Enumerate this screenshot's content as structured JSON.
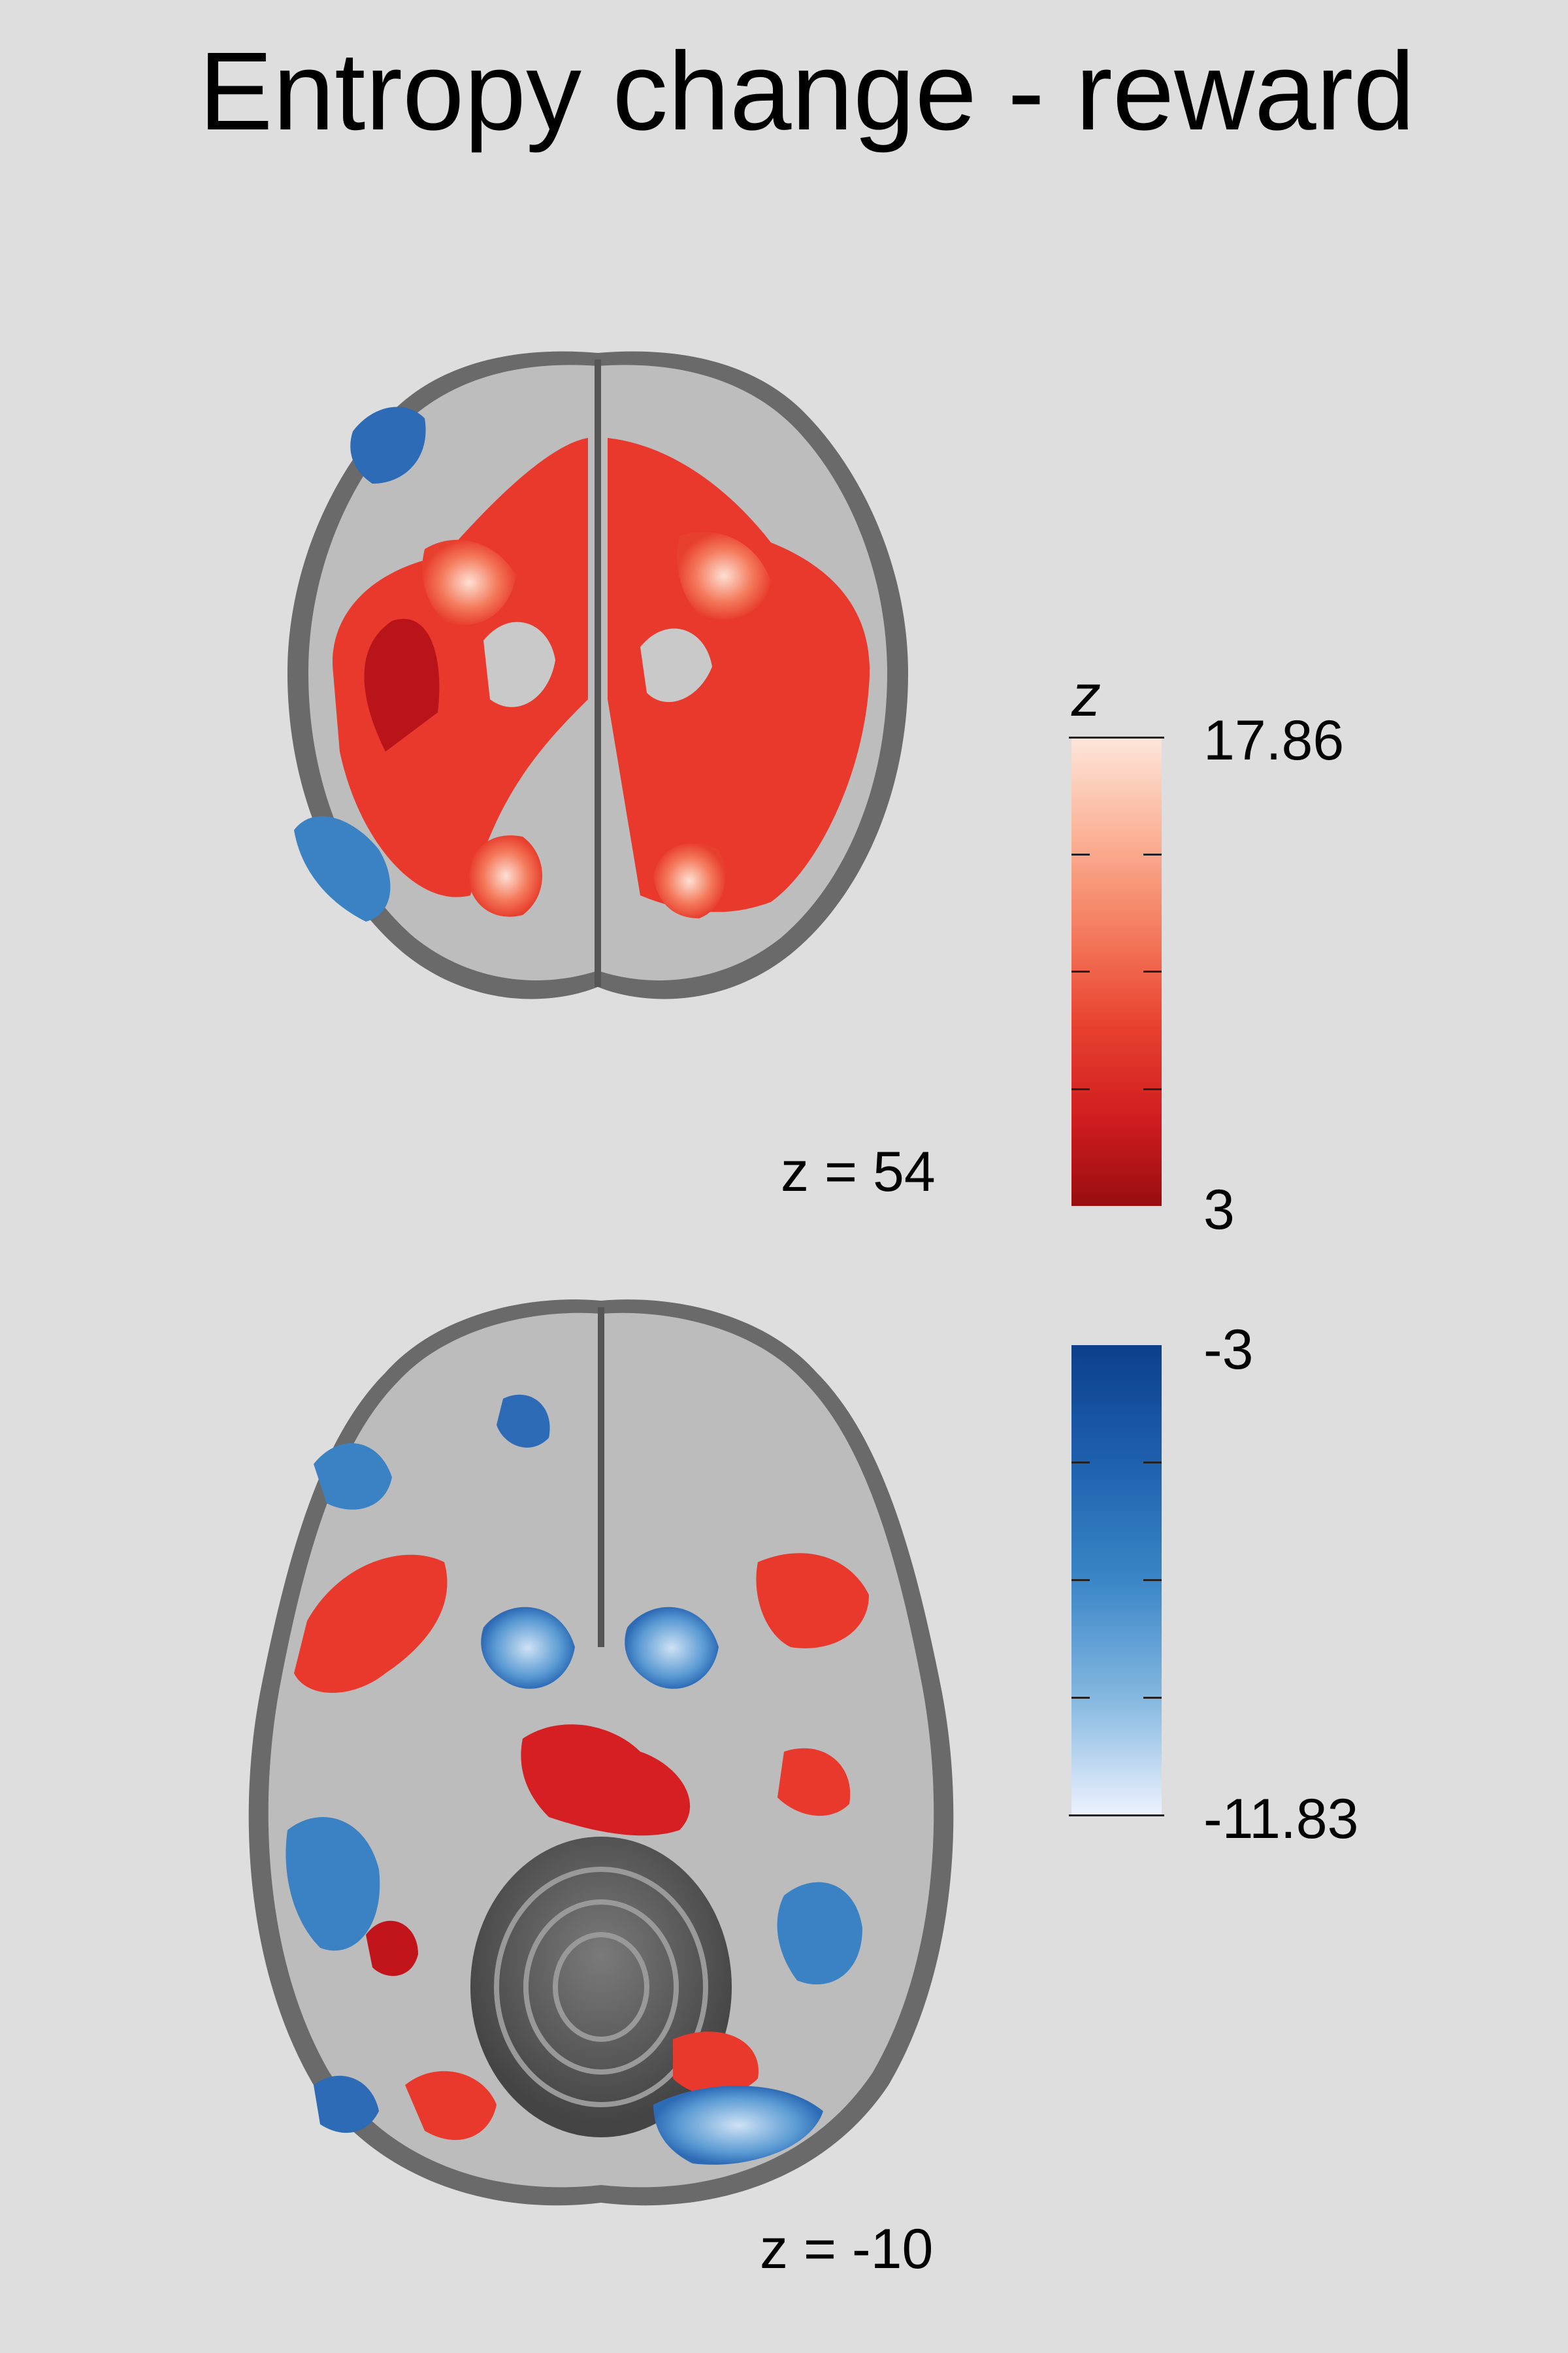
{
  "title": "Entropy change - reward",
  "slices": [
    {
      "label": "z = 54"
    },
    {
      "label": "z = -10"
    }
  ],
  "colorbar": {
    "symbol": "z",
    "positive": {
      "max_label": "17.86",
      "min_label": "3",
      "colors": [
        "#fde6dc",
        "#f47a5c",
        "#cf1c1f",
        "#980d0f"
      ]
    },
    "negative": {
      "top_label": "-3",
      "bottom_label": "-11.83",
      "colors": [
        "#0c3f8c",
        "#3a86c7",
        "#eef2fe"
      ]
    }
  }
}
